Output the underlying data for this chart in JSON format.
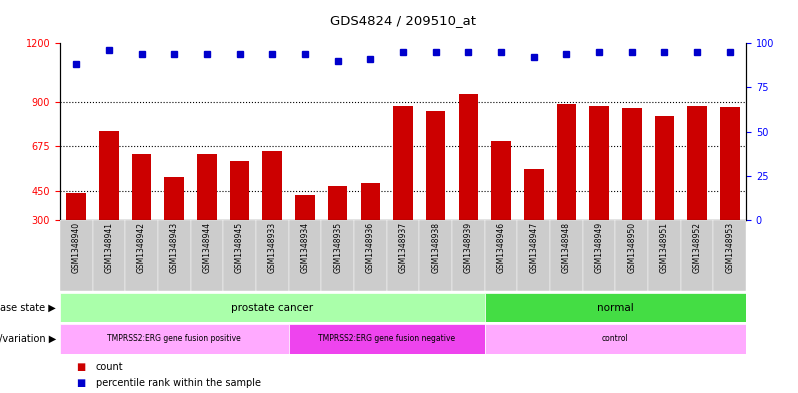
{
  "title": "GDS4824 / 209510_at",
  "samples": [
    "GSM1348940",
    "GSM1348941",
    "GSM1348942",
    "GSM1348943",
    "GSM1348944",
    "GSM1348945",
    "GSM1348933",
    "GSM1348934",
    "GSM1348935",
    "GSM1348936",
    "GSM1348937",
    "GSM1348938",
    "GSM1348939",
    "GSM1348946",
    "GSM1348947",
    "GSM1348948",
    "GSM1348949",
    "GSM1348950",
    "GSM1348951",
    "GSM1348952",
    "GSM1348953"
  ],
  "counts": [
    440,
    755,
    635,
    520,
    635,
    600,
    650,
    430,
    475,
    490,
    880,
    855,
    940,
    700,
    560,
    890,
    880,
    870,
    830,
    880,
    875
  ],
  "percentiles": [
    88,
    96,
    94,
    94,
    94,
    94,
    94,
    94,
    90,
    91,
    95,
    95,
    95,
    95,
    92,
    94,
    95,
    95,
    95,
    95,
    95
  ],
  "bar_color": "#cc0000",
  "dot_color": "#0000cc",
  "ylim_left": [
    300,
    1200
  ],
  "ylim_right": [
    0,
    100
  ],
  "yticks_left": [
    300,
    450,
    675,
    900,
    1200
  ],
  "yticks_right": [
    0,
    25,
    50,
    75,
    100
  ],
  "hlines": [
    450,
    675,
    900
  ],
  "disease_state_groups": [
    {
      "label": "prostate cancer",
      "start": 0,
      "end": 13,
      "color": "#aaffaa"
    },
    {
      "label": "normal",
      "start": 13,
      "end": 21,
      "color": "#44dd44"
    }
  ],
  "genotype_groups": [
    {
      "label": "TMPRSS2:ERG gene fusion positive",
      "start": 0,
      "end": 7,
      "color": "#ffaaff"
    },
    {
      "label": "TMPRSS2:ERG gene fusion negative",
      "start": 7,
      "end": 13,
      "color": "#ee44ee"
    },
    {
      "label": "control",
      "start": 13,
      "end": 21,
      "color": "#ffaaff"
    }
  ],
  "tick_bg_color": "#cccccc",
  "legend_items": [
    {
      "color": "#cc0000",
      "label": "count"
    },
    {
      "color": "#0000cc",
      "label": "percentile rank within the sample"
    }
  ]
}
